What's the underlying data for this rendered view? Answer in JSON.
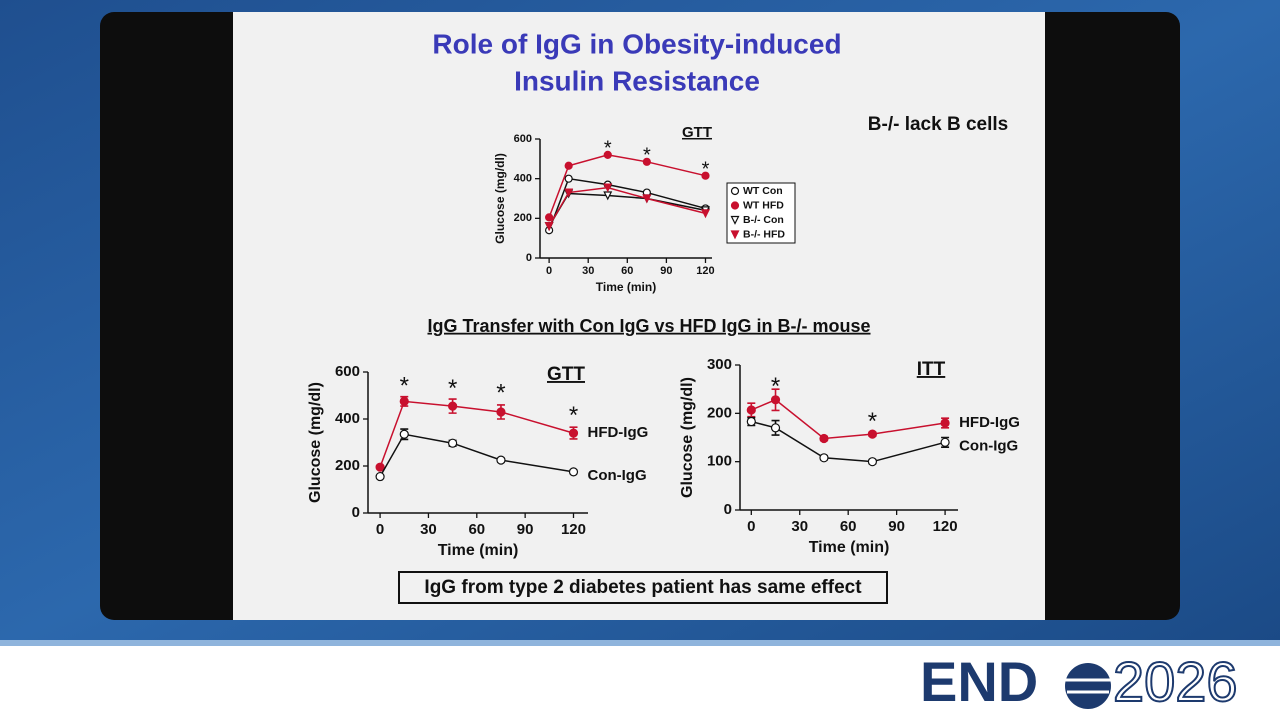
{
  "slide": {
    "title_line1": "Role of IgG in Obesity-induced",
    "title_line2": "Insulin Resistance",
    "note_top": "B-/- lack B cells",
    "subtitle": "IgG Transfer with Con IgG vs HFD IgG in B-/- mouse",
    "footnote": "IgG from type 2 diabetes patient has same effect",
    "logo_a": "END",
    "logo_b": "2026"
  },
  "chart_data": [
    {
      "type": "line",
      "title": "GTT",
      "xlabel": "Time (min)",
      "ylabel": "Glucose (mg/dl)",
      "x": [
        0,
        15,
        45,
        75,
        120
      ],
      "xlim": [
        -7,
        125
      ],
      "xticks": [
        0,
        30,
        60,
        90,
        120
      ],
      "ylim": [
        0,
        600
      ],
      "yticks": [
        0,
        200,
        400,
        600
      ],
      "legend": "box",
      "series": [
        {
          "name": "WT Con",
          "color": "#111111",
          "marker": "circle-open",
          "values": [
            140,
            400,
            370,
            330,
            250
          ]
        },
        {
          "name": "WT HFD",
          "color": "#c8102e",
          "marker": "circle",
          "values": [
            205,
            465,
            520,
            485,
            415
          ]
        },
        {
          "name": "B-/- Con",
          "color": "#111111",
          "marker": "triangle-open",
          "values": [
            160,
            325,
            315,
            300,
            240
          ]
        },
        {
          "name": "B-/- HFD",
          "color": "#c8102e",
          "marker": "triangle",
          "values": [
            160,
            330,
            355,
            300,
            225
          ]
        }
      ],
      "annotations": [
        {
          "text": "*",
          "x": 45,
          "y": 565
        },
        {
          "text": "*",
          "x": 75,
          "y": 530
        },
        {
          "text": "*",
          "x": 120,
          "y": 460
        }
      ]
    },
    {
      "type": "line",
      "title": "GTT",
      "xlabel": "Time (min)",
      "ylabel": "Glucose (mg/dl)",
      "x": [
        0,
        15,
        45,
        75,
        120
      ],
      "xlim": [
        -7.5,
        129
      ],
      "xticks": [
        0,
        30,
        60,
        90,
        120
      ],
      "ylim": [
        0,
        600
      ],
      "yticks": [
        0,
        200,
        400,
        600
      ],
      "legend": "inline",
      "series": [
        {
          "name": "HFD-IgG",
          "color": "#c8102e",
          "marker": "circle",
          "values": [
            195,
            475,
            455,
            430,
            340
          ],
          "errors": [
            5,
            20,
            30,
            30,
            25
          ]
        },
        {
          "name": "Con-IgG",
          "color": "#111111",
          "marker": "circle-open",
          "values": [
            155,
            335,
            297,
            225,
            175
          ],
          "errors": [
            5,
            22,
            12,
            8,
            8
          ]
        }
      ],
      "annotations": [
        {
          "text": "*",
          "x": 15,
          "y": 555
        },
        {
          "text": "*",
          "x": 45,
          "y": 545
        },
        {
          "text": "*",
          "x": 75,
          "y": 525
        },
        {
          "text": "*",
          "x": 120,
          "y": 430
        }
      ]
    },
    {
      "type": "line",
      "title": "ITT",
      "xlabel": "Time (min)",
      "ylabel": "Glucose (mg/dl)",
      "x": [
        0,
        15,
        45,
        75,
        120
      ],
      "xlim": [
        -7,
        128
      ],
      "xticks": [
        0,
        30,
        60,
        90,
        120
      ],
      "ylim": [
        0,
        300
      ],
      "yticks": [
        0,
        100,
        200,
        300
      ],
      "legend": "inline",
      "series": [
        {
          "name": "HFD-IgG",
          "color": "#c8102e",
          "marker": "circle",
          "values": [
            207,
            228,
            148,
            157,
            180
          ],
          "errors": [
            14,
            22,
            4,
            4,
            10
          ]
        },
        {
          "name": "Con-IgG",
          "color": "#111111",
          "marker": "circle-open",
          "values": [
            183,
            170,
            108,
            100,
            140
          ],
          "errors": [
            8,
            15,
            4,
            4,
            10
          ]
        }
      ],
      "annotations": [
        {
          "text": "*",
          "x": 15,
          "y": 262
        },
        {
          "text": "*",
          "x": 75,
          "y": 190
        }
      ]
    }
  ]
}
